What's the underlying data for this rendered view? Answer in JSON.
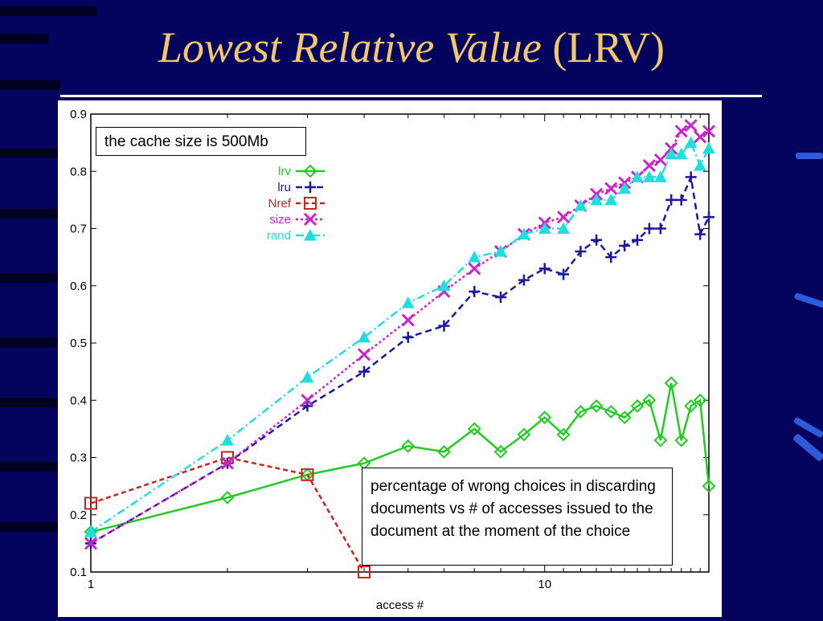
{
  "title": {
    "main": "Lowest Relative Value",
    "abbr": "(LRV)"
  },
  "annotations": {
    "cache_note": "the cache size is 500Mb",
    "description": "percentage of wrong choices in discarding documents vs # of accesses issued to the document at the moment of the choice"
  },
  "colors": {
    "background": "#04045e",
    "title": "#f2c86a",
    "lrv": "#22cc22",
    "lru": "#1a1a9a",
    "Nref": "#cc2222",
    "size": "#cc22cc",
    "rand": "#22dddd"
  },
  "chart_data": {
    "type": "line",
    "title": "",
    "xlabel": "access #",
    "ylabel": "",
    "xscale": "log",
    "xlim": [
      1,
      23
    ],
    "ylim": [
      0.1,
      0.9
    ],
    "yticks": [
      "0.1",
      "0.2",
      "0.3",
      "0.4",
      "0.5",
      "0.6",
      "0.7",
      "0.8",
      "0.9"
    ],
    "xticks": [
      "1",
      "10"
    ],
    "grid": false,
    "legend_position": "top-left",
    "series": [
      {
        "name": "lrv",
        "color": "#22cc22",
        "marker": "diamond",
        "dash": "solid",
        "x": [
          1,
          2,
          3,
          4,
          5,
          6,
          7,
          8,
          9,
          10,
          11,
          12,
          13,
          14,
          15,
          16,
          17,
          18,
          19,
          20,
          21,
          22,
          23
        ],
        "y": [
          0.17,
          0.23,
          0.27,
          0.29,
          0.32,
          0.31,
          0.35,
          0.31,
          0.34,
          0.37,
          0.34,
          0.38,
          0.39,
          0.38,
          0.37,
          0.39,
          0.4,
          0.33,
          0.43,
          0.33,
          0.39,
          0.4,
          0.25
        ]
      },
      {
        "name": "lru",
        "color": "#1a1a9a",
        "marker": "plus",
        "dash": "8,5",
        "x": [
          1,
          2,
          3,
          4,
          5,
          6,
          7,
          8,
          9,
          10,
          11,
          12,
          13,
          14,
          15,
          16,
          17,
          18,
          19,
          20,
          21,
          22,
          23
        ],
        "y": [
          0.15,
          0.29,
          0.39,
          0.45,
          0.51,
          0.53,
          0.59,
          0.58,
          0.61,
          0.63,
          0.62,
          0.66,
          0.68,
          0.65,
          0.67,
          0.68,
          0.7,
          0.7,
          0.75,
          0.75,
          0.79,
          0.69,
          0.72
        ]
      },
      {
        "name": "Nref",
        "color": "#cc2222",
        "marker": "square",
        "dash": "6,4",
        "x": [
          1,
          2,
          3,
          4
        ],
        "y": [
          0.22,
          0.3,
          0.27,
          0.1
        ]
      },
      {
        "name": "size",
        "color": "#cc22cc",
        "marker": "x",
        "dash": "3,3",
        "x": [
          1,
          2,
          3,
          4,
          5,
          6,
          7,
          8,
          9,
          10,
          11,
          12,
          13,
          14,
          15,
          16,
          17,
          18,
          19,
          20,
          21,
          22,
          23
        ],
        "y": [
          0.15,
          0.29,
          0.4,
          0.48,
          0.54,
          0.59,
          0.63,
          0.66,
          0.69,
          0.71,
          0.72,
          0.74,
          0.76,
          0.77,
          0.78,
          0.79,
          0.81,
          0.82,
          0.84,
          0.87,
          0.88,
          0.86,
          0.87
        ]
      },
      {
        "name": "rand",
        "color": "#22dddd",
        "marker": "triangle",
        "dash": "10,4,2,4",
        "x": [
          1,
          2,
          3,
          4,
          5,
          6,
          7,
          8,
          9,
          10,
          11,
          12,
          13,
          14,
          15,
          16,
          17,
          18,
          19,
          20,
          21,
          22,
          23
        ],
        "y": [
          0.17,
          0.33,
          0.44,
          0.51,
          0.57,
          0.6,
          0.65,
          0.66,
          0.69,
          0.7,
          0.7,
          0.74,
          0.75,
          0.75,
          0.77,
          0.79,
          0.79,
          0.79,
          0.83,
          0.83,
          0.85,
          0.81,
          0.84
        ]
      }
    ]
  }
}
